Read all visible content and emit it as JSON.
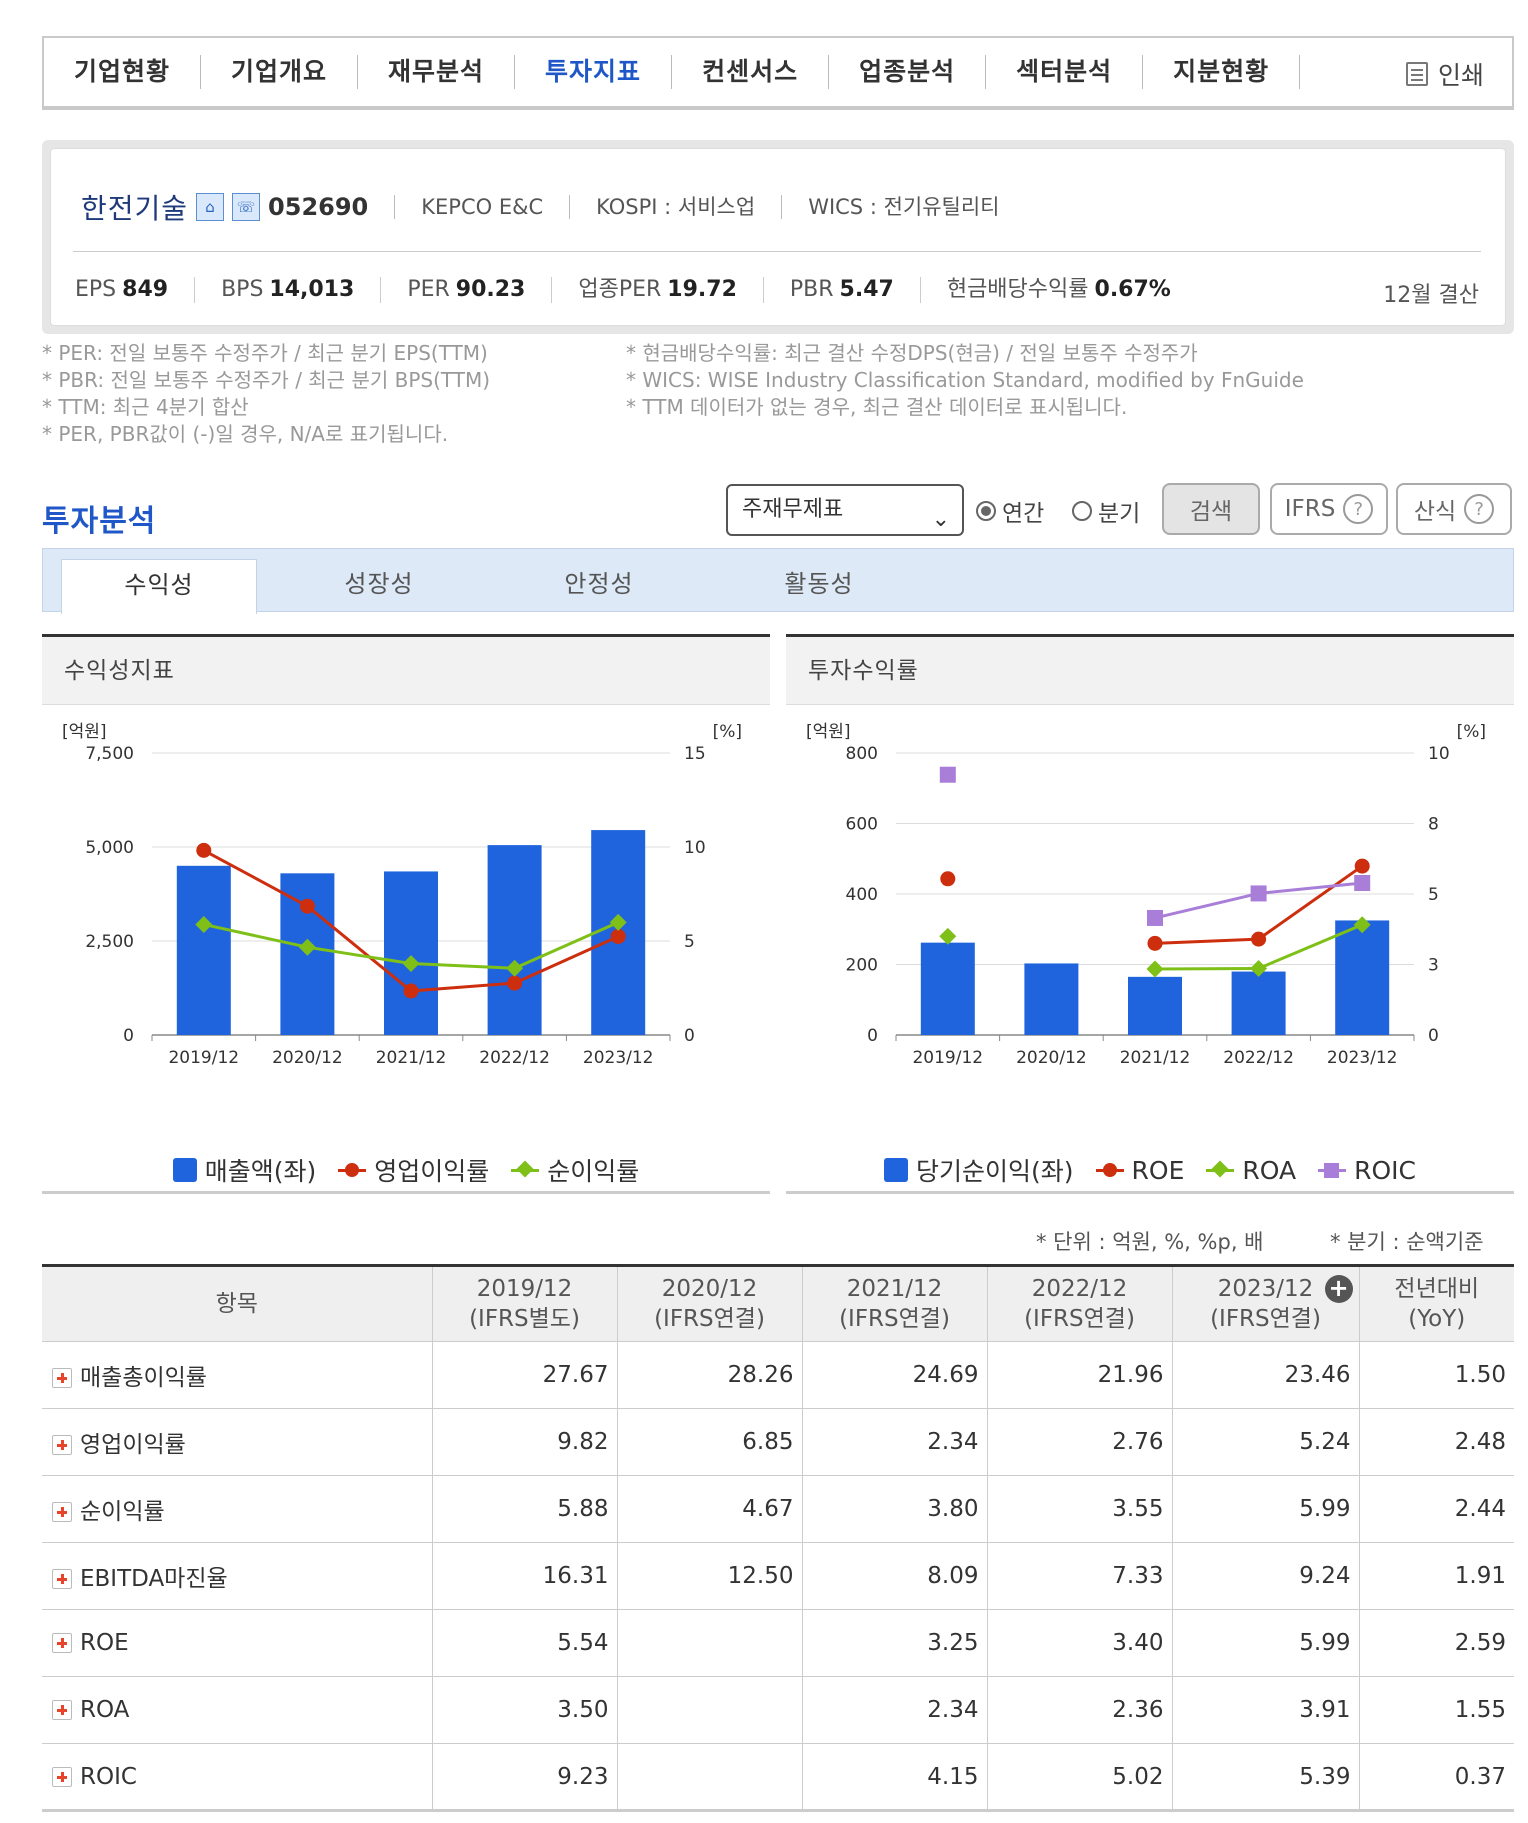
{
  "nav": {
    "tabs": [
      "기업현황",
      "기업개요",
      "재무분석",
      "투자지표",
      "컨센서스",
      "업종분석",
      "섹터분석",
      "지분현황"
    ],
    "print_label": "인쇄"
  },
  "company": {
    "name": "한전기술",
    "code": "052690",
    "english_name": "KEPCO E&C",
    "market": "KOSPI : 서비스업",
    "wics": "WICS : 전기유틸리티",
    "stats": [
      {
        "label": "EPS",
        "value": "849"
      },
      {
        "label": "BPS",
        "value": "14,013"
      },
      {
        "label": "PER",
        "value": "90.23"
      },
      {
        "label": "업종PER",
        "value": "19.72"
      },
      {
        "label": "PBR",
        "value": "5.47"
      },
      {
        "label": "현금배당수익률",
        "value": "0.67%"
      }
    ],
    "settlement": "12월 결산"
  },
  "notes": {
    "left": [
      "* PER: 전일 보통주 수정주가 / 최근 분기 EPS(TTM)",
      "* PBR: 전일 보통주 수정주가 / 최근 분기 BPS(TTM)",
      "* TTM: 최근 4분기 합산",
      "* PER, PBR값이 (-)일 경우, N/A로 표기됩니다."
    ],
    "right": [
      "* 현금배당수익률: 최근 결산 수정DPS(현금) / 전일 보통주 수정주가",
      "* WICS: WISE Industry Classification Standard, modified by FnGuide",
      "* TTM 데이터가 없는 경우, 최근 결산 데이터로 표시됩니다."
    ]
  },
  "invest": {
    "title": "투자분석",
    "select_value": "주재무제표",
    "radio_annual": "연간",
    "radio_quarter": "분기",
    "search_btn": "검색",
    "ifrs_btn": "IFRS",
    "formula_btn": "산식",
    "subtabs": [
      "수익성",
      "성장성",
      "안정성",
      "활동성"
    ]
  },
  "chart_data": [
    {
      "type": "bar",
      "title": "수익성지표",
      "left_unit": "[억원]",
      "right_unit": "[%]",
      "categories": [
        "2019/12",
        "2020/12",
        "2021/12",
        "2022/12",
        "2023/12"
      ],
      "ylim_left": [
        0,
        7500
      ],
      "left_ticks": [
        "0",
        "2,500",
        "5,000",
        "7,500"
      ],
      "ylim_right": [
        0,
        15
      ],
      "right_ticks": [
        "0",
        "5",
        "10",
        "15"
      ],
      "series": [
        {
          "name": "매출액(좌)",
          "kind": "bar",
          "axis": "left",
          "color": "#2064dd",
          "values": [
            4500,
            4300,
            4350,
            5050,
            5450
          ]
        },
        {
          "name": "영업이익률",
          "kind": "line",
          "axis": "right",
          "marker": "circle",
          "color": "#cc2e0e",
          "values": [
            9.82,
            6.85,
            2.34,
            2.76,
            5.24
          ]
        },
        {
          "name": "순이익률",
          "kind": "line",
          "axis": "right",
          "marker": "diamond",
          "color": "#7fc018",
          "values": [
            5.88,
            4.67,
            3.8,
            3.55,
            5.99
          ]
        }
      ]
    },
    {
      "type": "bar",
      "title": "투자수익률",
      "left_unit": "[억원]",
      "right_unit": "[%]",
      "categories": [
        "2019/12",
        "2020/12",
        "2021/12",
        "2022/12",
        "2023/12"
      ],
      "ylim_left": [
        0,
        800
      ],
      "left_ticks": [
        "0",
        "200",
        "400",
        "600",
        "800"
      ],
      "ylim_right": [
        0,
        10
      ],
      "right_ticks": [
        "0",
        "3",
        "5",
        "8",
        "10"
      ],
      "series": [
        {
          "name": "당기순이익(좌)",
          "kind": "bar",
          "axis": "left",
          "color": "#2064dd",
          "values": [
            262,
            203,
            165,
            180,
            325
          ]
        },
        {
          "name": "ROE",
          "kind": "line",
          "axis": "right",
          "marker": "circle",
          "color": "#cc2e0e",
          "values": [
            5.54,
            null,
            3.25,
            3.4,
            5.99
          ]
        },
        {
          "name": "ROA",
          "kind": "line",
          "axis": "right",
          "marker": "diamond",
          "color": "#7fc018",
          "values": [
            3.5,
            null,
            2.34,
            2.36,
            3.91
          ]
        },
        {
          "name": "ROIC",
          "kind": "line",
          "axis": "right",
          "marker": "square",
          "color": "#a87ed9",
          "values": [
            9.23,
            null,
            4.15,
            5.02,
            5.39
          ]
        }
      ]
    }
  ],
  "table": {
    "units_note": "* 단위 : 억원, %, %p, 배",
    "quarter_note": "* 분기 : 순액기준",
    "headers": [
      {
        "l1": "항목",
        "l2": ""
      },
      {
        "l1": "2019/12",
        "l2": "(IFRS별도)"
      },
      {
        "l1": "2020/12",
        "l2": "(IFRS연결)"
      },
      {
        "l1": "2021/12",
        "l2": "(IFRS연결)"
      },
      {
        "l1": "2022/12",
        "l2": "(IFRS연결)"
      },
      {
        "l1": "2023/12",
        "l2": "(IFRS연결)"
      },
      {
        "l1": "전년대비",
        "l2": "(YoY)"
      }
    ],
    "rows": [
      {
        "name": "매출총이익률",
        "values": [
          "27.67",
          "28.26",
          "24.69",
          "21.96",
          "23.46",
          "1.50"
        ]
      },
      {
        "name": "영업이익률",
        "values": [
          "9.82",
          "6.85",
          "2.34",
          "2.76",
          "5.24",
          "2.48"
        ]
      },
      {
        "name": "순이익률",
        "values": [
          "5.88",
          "4.67",
          "3.80",
          "3.55",
          "5.99",
          "2.44"
        ]
      },
      {
        "name": "EBITDA마진율",
        "values": [
          "16.31",
          "12.50",
          "8.09",
          "7.33",
          "9.24",
          "1.91"
        ]
      },
      {
        "name": "ROE",
        "values": [
          "5.54",
          "",
          "3.25",
          "3.40",
          "5.99",
          "2.59"
        ]
      },
      {
        "name": "ROA",
        "values": [
          "3.50",
          "",
          "2.34",
          "2.36",
          "3.91",
          "1.55"
        ]
      },
      {
        "name": "ROIC",
        "values": [
          "9.23",
          "",
          "4.15",
          "5.02",
          "5.39",
          "0.37"
        ]
      }
    ]
  }
}
